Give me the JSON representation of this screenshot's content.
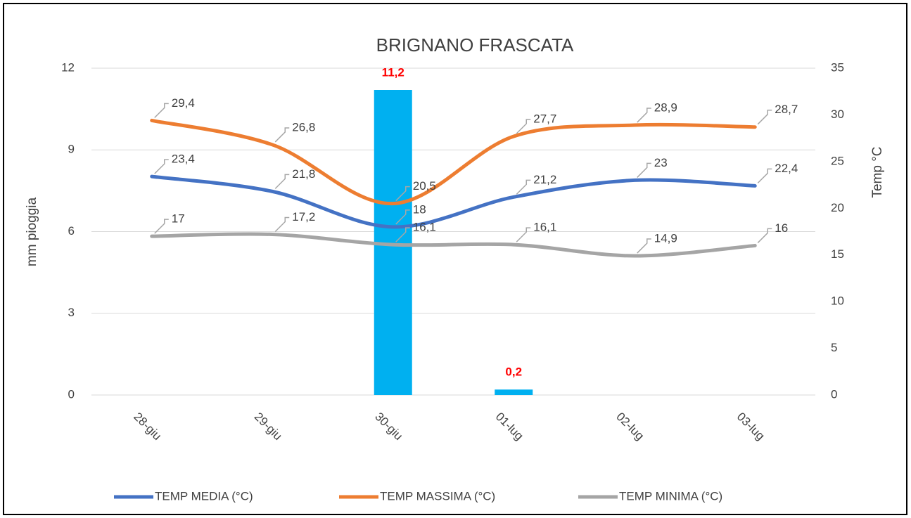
{
  "chart_data": {
    "type": "combo",
    "title": "BRIGNANO FRASCATA",
    "ylabel": "mm pioggia",
    "y2label": "Temp °C",
    "categories": [
      "28-giu",
      "29-giu",
      "30-giu",
      "01-lug",
      "02-lug",
      "03-lug"
    ],
    "ylim": [
      0,
      12
    ],
    "yticks": [
      0,
      3,
      6,
      9,
      12
    ],
    "y2lim": [
      0,
      35
    ],
    "y2ticks": [
      0,
      5,
      10,
      15,
      20,
      25,
      30,
      35
    ],
    "bars": {
      "color": "#00b0f0",
      "label_color": "#ff0000",
      "values": [
        null,
        null,
        11.2,
        0.2,
        null,
        null
      ],
      "value_labels": [
        null,
        null,
        "11,2",
        "0,2",
        null,
        null
      ]
    },
    "series": [
      {
        "name": "TEMP MEDIA (°C)",
        "color": "#4472c4",
        "axis": "y2",
        "values": [
          23.4,
          21.8,
          18,
          21.2,
          23,
          22.4
        ],
        "value_labels": [
          "23,4",
          "21,8",
          "18",
          "21,2",
          "23",
          "22,4"
        ]
      },
      {
        "name": "TEMP MASSIMA (°C)",
        "color": "#ed7d31",
        "axis": "y2",
        "values": [
          29.4,
          26.8,
          20.5,
          27.7,
          28.9,
          28.7
        ],
        "value_labels": [
          "29,4",
          "26,8",
          "20,5",
          "27,7",
          "28,9",
          "28,7"
        ]
      },
      {
        "name": "TEMP MINIMA (°C)",
        "color": "#a5a5a5",
        "axis": "y2",
        "values": [
          17,
          17.2,
          16.1,
          16.1,
          14.9,
          16
        ],
        "value_labels": [
          "17",
          "17,2",
          "16,1",
          "16,1",
          "14,9",
          "16"
        ]
      }
    ],
    "grid": true
  }
}
